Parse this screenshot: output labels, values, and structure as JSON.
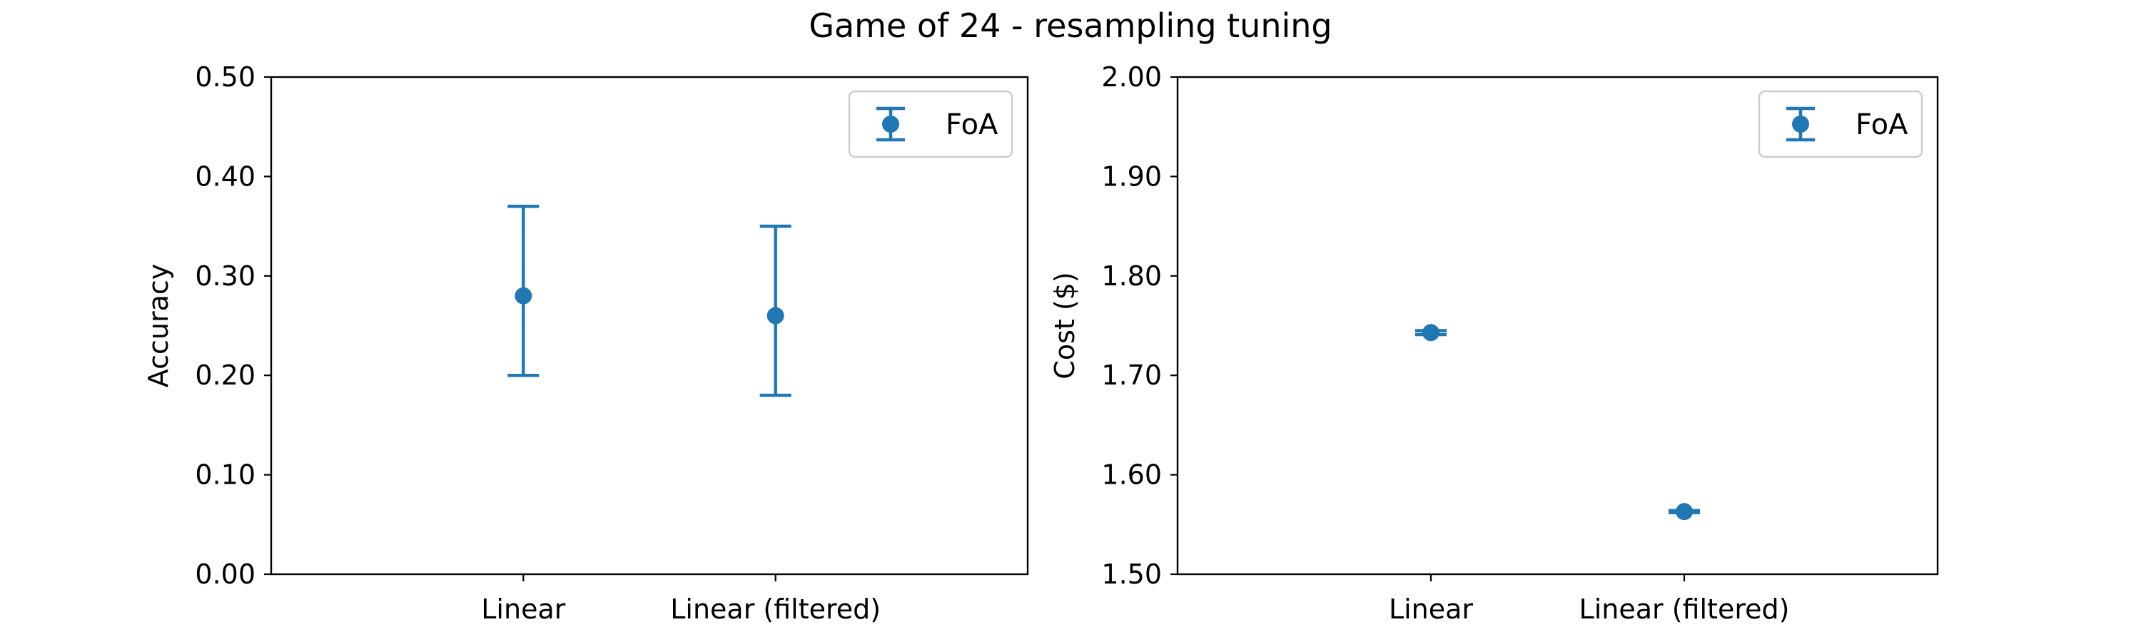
{
  "figure": {
    "title": "Game of 24 - resampling tuning"
  },
  "colors": {
    "series": "#1f77b4",
    "axes": "#000000",
    "legend_border": "#cccccc"
  },
  "chart_data": [
    {
      "type": "scatter",
      "error_bars": true,
      "categories": [
        "Linear",
        "Linear (filtered)"
      ],
      "series": [
        {
          "name": "FoA",
          "values": [
            0.28,
            0.26
          ],
          "error_low": [
            0.2,
            0.18
          ],
          "error_high": [
            0.37,
            0.35
          ]
        }
      ],
      "xlabel": "",
      "ylabel": "Accuracy",
      "ylim": [
        0.0,
        0.5
      ],
      "yticks": [
        "0.00",
        "0.10",
        "0.20",
        "0.30",
        "0.40",
        "0.50"
      ],
      "grid": false,
      "legend": "top-right"
    },
    {
      "type": "scatter",
      "error_bars": true,
      "categories": [
        "Linear",
        "Linear (filtered)"
      ],
      "series": [
        {
          "name": "FoA",
          "values": [
            1.743,
            1.563
          ],
          "error_low": [
            1.741,
            1.562
          ],
          "error_high": [
            1.745,
            1.564
          ]
        }
      ],
      "xlabel": "",
      "ylabel": "Cost ($)",
      "ylim": [
        1.5,
        2.0
      ],
      "yticks": [
        "1.50",
        "1.60",
        "1.70",
        "1.80",
        "1.90",
        "2.00"
      ],
      "grid": false,
      "legend": "top-right"
    }
  ]
}
